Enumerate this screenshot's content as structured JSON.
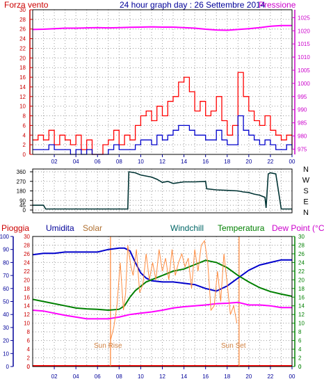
{
  "header": {
    "left_label": "Forza vento",
    "title": "24 hour graph day : 26 Settembre 2014",
    "right_label": "Pressione"
  },
  "legend": {
    "pioggia": "Pioggia",
    "umidita": "Umidita",
    "solar": "Solar",
    "windchill": "Windchill",
    "temperatura": "Temperatura",
    "dew_point": "Dew Point (°C)"
  },
  "annotations": {
    "sun_rise": "Sun Rise",
    "sun_set": "Sun Set"
  },
  "colors": {
    "wind_gust": "#ff0000",
    "wind_avg": "#0000cc",
    "pressure": "#ff00ff",
    "direction": "#003333",
    "rain": "#ff0000",
    "humidity": "#0000cc",
    "solar": "#ff8c40",
    "windchill": "#006666",
    "temperature": "#008000",
    "dew_point": "#ff00ff",
    "axis_red": "#cc0000",
    "axis_blue": "#000099",
    "axis_green": "#008000",
    "axis_magenta": "#cc00cc",
    "grid": "#999999"
  },
  "chart_data": [
    {
      "type": "line",
      "panel": "wind-pressure",
      "x_ticks": [
        "02",
        "04",
        "06",
        "08",
        "10",
        "12",
        "14",
        "16",
        "18",
        "20",
        "22",
        "00"
      ],
      "y_left": {
        "ticks": [
          0,
          2,
          4,
          6,
          8,
          10,
          12,
          14,
          16,
          18,
          20,
          22,
          24,
          26,
          28,
          30
        ],
        "range": [
          0,
          30
        ]
      },
      "y_right": {
        "ticks": [
          975,
          980,
          985,
          990,
          995,
          1000,
          1005,
          1010,
          1015,
          1020,
          1025
        ],
        "range": [
          973,
          1028
        ]
      },
      "series": [
        {
          "key": "wind_gust",
          "axis": "left",
          "x": [
            0,
            0.5,
            1,
            1.5,
            2,
            2.5,
            3,
            3.5,
            4,
            4.5,
            5,
            5.5,
            6,
            6.5,
            7,
            7.5,
            8,
            8.5,
            9,
            9.5,
            10,
            10.5,
            11,
            11.5,
            12,
            12.5,
            13,
            13.5,
            14,
            14.5,
            15,
            15.5,
            16,
            16.5,
            17,
            17.5,
            18,
            18.5,
            19,
            19.5,
            20,
            20.5,
            21,
            21.5,
            22,
            22.5,
            23,
            23.5,
            24
          ],
          "values": [
            3,
            4,
            3,
            5,
            2,
            4,
            3,
            2,
            4,
            1,
            3,
            0,
            0,
            2,
            3,
            5,
            2,
            4,
            3,
            6,
            8,
            9,
            7,
            10,
            8,
            11,
            12,
            15,
            16,
            13,
            9,
            11,
            8,
            9,
            12,
            7,
            4,
            6,
            17,
            12,
            9,
            7,
            6,
            8,
            5,
            4,
            3,
            4,
            2
          ]
        },
        {
          "key": "wind_avg",
          "axis": "left",
          "x": [
            0,
            0.5,
            1,
            1.5,
            2,
            2.5,
            3,
            3.5,
            4,
            4.5,
            5,
            5.5,
            6,
            6.5,
            7,
            7.5,
            8,
            8.5,
            9,
            9.5,
            10,
            10.5,
            11,
            11.5,
            12,
            12.5,
            13,
            13.5,
            14,
            14.5,
            15,
            15.5,
            16,
            16.5,
            17,
            17.5,
            18,
            18.5,
            19,
            19.5,
            20,
            20.5,
            21,
            21.5,
            22,
            22.5,
            23,
            23.5,
            24
          ],
          "values": [
            1,
            1,
            1,
            2,
            1,
            1,
            1,
            0,
            1,
            0,
            1,
            0,
            0,
            0,
            1,
            2,
            1,
            1,
            1,
            2,
            3,
            3,
            2,
            4,
            3,
            4,
            5,
            6,
            6,
            5,
            4,
            4,
            3,
            3,
            5,
            3,
            2,
            2,
            8,
            5,
            4,
            3,
            2,
            3,
            2,
            1,
            1,
            2,
            1
          ]
        },
        {
          "key": "pressure",
          "axis": "right",
          "x": [
            0,
            1,
            2,
            3,
            4,
            5,
            6,
            7,
            8,
            9,
            10,
            11,
            12,
            13,
            14,
            15,
            16,
            17,
            18,
            19,
            20,
            21,
            22,
            23,
            24
          ],
          "values": [
            1020.5,
            1020.6,
            1020.8,
            1021,
            1021,
            1021.1,
            1021.2,
            1021.1,
            1021.2,
            1021.3,
            1021.4,
            1021.5,
            1021.4,
            1021.4,
            1021.2,
            1021,
            1020.6,
            1020.3,
            1020.2,
            1020.5,
            1020.8,
            1021.2,
            1021.7,
            1022,
            1022
          ]
        }
      ]
    },
    {
      "type": "line",
      "panel": "wind-direction",
      "y_ticks": [
        0,
        45,
        90,
        180,
        270,
        360
      ],
      "y_range": [
        0,
        360
      ],
      "compass_labels": [
        "N",
        "W",
        "S",
        "E",
        "N"
      ],
      "series": [
        {
          "key": "direction",
          "x": [
            0,
            1,
            1.2,
            2,
            3,
            4,
            5,
            6,
            7,
            8,
            8.8,
            8.9,
            9.5,
            10,
            10.5,
            11,
            11.5,
            12,
            12.5,
            13,
            14,
            15,
            16,
            16.1,
            17,
            18,
            19,
            19.5,
            20,
            20.5,
            21,
            21.5,
            21.6,
            21.8,
            22,
            22.5,
            23,
            24
          ],
          "values": [
            45,
            45,
            10,
            10,
            10,
            10,
            10,
            10,
            10,
            10,
            10,
            360,
            350,
            330,
            320,
            310,
            290,
            260,
            270,
            250,
            265,
            265,
            270,
            200,
            190,
            185,
            180,
            170,
            165,
            150,
            140,
            120,
            20,
            340,
            350,
            340,
            10,
            10
          ]
        }
      ]
    },
    {
      "type": "line",
      "panel": "temperature-humidity-solar",
      "y_left_outer": {
        "label": "Pioggia",
        "ticks": [
          0,
          2,
          4,
          6,
          8,
          10,
          12,
          14,
          16,
          18,
          20,
          22,
          24,
          26,
          28,
          30
        ],
        "range": [
          0,
          30
        ]
      },
      "y_left_humidity": {
        "label": "Umidita",
        "ticks": [
          0,
          10,
          20,
          30,
          40,
          50,
          60,
          70,
          80,
          90,
          100
        ],
        "range": [
          0,
          100
        ]
      },
      "y_right_temp": {
        "ticks": [
          0,
          2,
          4,
          6,
          8,
          10,
          12,
          14,
          16,
          18,
          20,
          22,
          24,
          26,
          28,
          30
        ],
        "range": [
          0,
          30
        ]
      },
      "series": [
        {
          "key": "humidity",
          "axis": "humidity",
          "x": [
            0,
            1,
            2,
            3,
            4,
            5,
            6,
            7,
            8,
            8.5,
            9,
            9.5,
            10,
            10.5,
            11,
            12,
            13,
            14,
            15,
            16,
            17,
            18,
            19,
            20,
            21,
            22,
            23,
            24
          ],
          "values": [
            86,
            87,
            87,
            88,
            88,
            88,
            88,
            90,
            91,
            91,
            89,
            80,
            72,
            68,
            66,
            65,
            65,
            64,
            63,
            60,
            58,
            62,
            68,
            74,
            78,
            80,
            82,
            82
          ]
        },
        {
          "key": "temperature",
          "axis": "temp",
          "x": [
            0,
            1,
            2,
            3,
            4,
            5,
            6,
            7,
            8,
            8.5,
            9,
            9.5,
            10,
            10.5,
            11,
            12,
            13,
            14,
            15,
            16,
            17,
            18,
            19,
            20,
            21,
            22,
            23,
            24
          ],
          "values": [
            15.5,
            15,
            14.5,
            14,
            13.5,
            13.3,
            13.2,
            13,
            13.2,
            14,
            16,
            17.5,
            18.5,
            19.5,
            20,
            21,
            22,
            22.5,
            23.5,
            24.5,
            24,
            22.8,
            21,
            19.5,
            18.2,
            17.3,
            16.7,
            16.2
          ]
        },
        {
          "key": "dew_point",
          "axis": "temp",
          "x": [
            0,
            1,
            2,
            3,
            4,
            5,
            6,
            7,
            8,
            9,
            10,
            11,
            12,
            13,
            14,
            15,
            16,
            17,
            18,
            19,
            20,
            21,
            22,
            23,
            24
          ],
          "values": [
            13,
            12.8,
            12.3,
            11.8,
            11.4,
            11,
            11,
            11,
            11.4,
            12,
            12.3,
            12.6,
            13,
            13.5,
            13.8,
            14,
            14.2,
            14.5,
            14.6,
            14.8,
            14.2,
            14.2,
            14,
            13.6,
            13.6
          ]
        },
        {
          "key": "solar",
          "axis": "temp",
          "x": [
            7.2,
            7.5,
            7.8,
            8.1,
            8.4,
            8.6,
            8.8,
            9.1,
            9.3,
            9.6,
            9.9,
            10.2,
            10.5,
            10.8,
            11.1,
            11.4,
            11.7,
            12,
            12.3,
            12.6,
            12.9,
            13.2,
            13.5,
            13.8,
            14.1,
            14.4,
            14.7,
            15,
            15.3,
            15.6,
            15.9,
            16.2,
            16.5,
            16.8,
            17.1,
            17.4,
            17.7,
            18,
            18.3,
            18.6,
            18.9
          ],
          "values": [
            6,
            9,
            14,
            24,
            13,
            17,
            28,
            23,
            21,
            27,
            17,
            19,
            26,
            20,
            24,
            20,
            27,
            22,
            25,
            20,
            27,
            21,
            24,
            26,
            23,
            25,
            18,
            27,
            22,
            28,
            29,
            24,
            13,
            14,
            22,
            15,
            26,
            19,
            12,
            14,
            10
          ]
        }
      ],
      "sun_rise_hour": 7.2,
      "sun_set_hour": 19.1
    }
  ]
}
